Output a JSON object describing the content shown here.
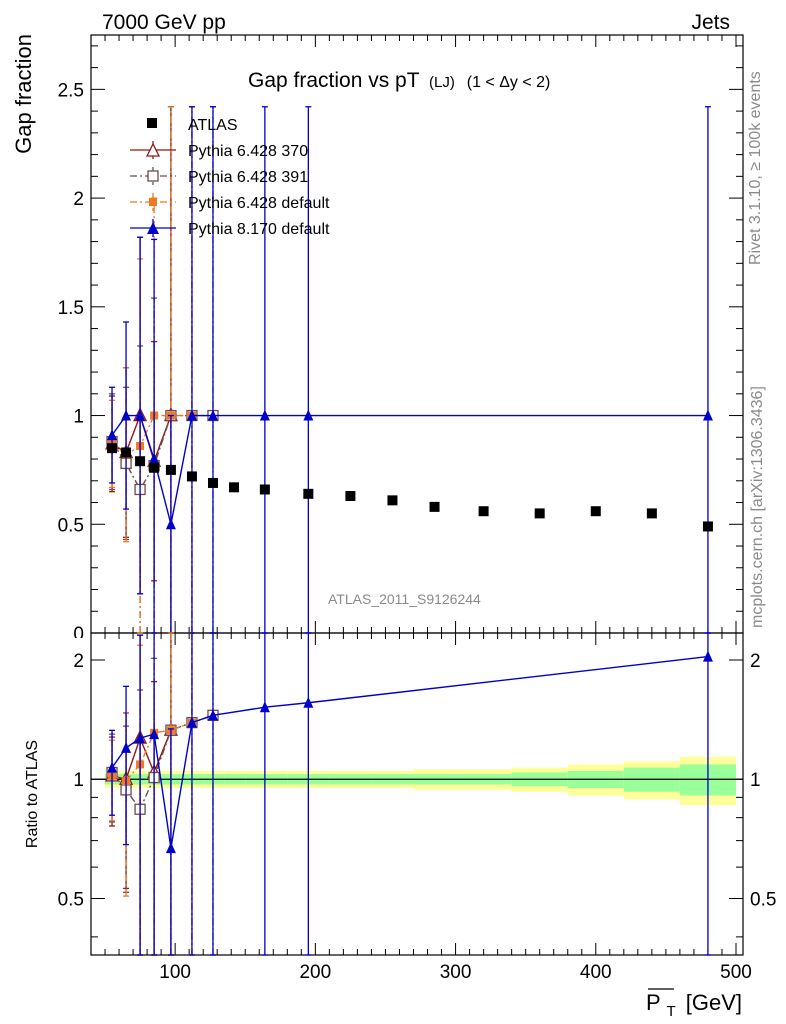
{
  "header": {
    "left": "7000 GeV pp",
    "right": "Jets"
  },
  "side_text": {
    "rivet": "Rivet 3.1.10, ≥ 100k events",
    "mcplots": "mcplots.cern.ch [arXiv:1306.3436]"
  },
  "watermark": "ATLAS_2011_S9126244",
  "chart_data": [
    {
      "type": "scatter",
      "panel": "main",
      "title": "Gap fraction vs pT (LJ) (1 < Δy < 2)",
      "title_parts": {
        "main": "Gap fraction vs pT",
        "sub": "(LJ)",
        "range": "(1 < Δy < 2)"
      },
      "ylabel": "Gap fraction",
      "xlim": [
        40,
        505
      ],
      "ylim": [
        0,
        2.75
      ],
      "yticks": [
        0.5,
        1,
        1.5,
        2,
        2.5
      ],
      "ytick_labels": [
        "0.5",
        "1",
        "1.5",
        "2",
        "2.5"
      ],
      "grid": false,
      "legend_position": "top-left",
      "series": [
        {
          "name": "ATLAS",
          "color": "#000000",
          "marker": "square-filled",
          "line": "none",
          "x": [
            55,
            65,
            75,
            85,
            97,
            112,
            127,
            142,
            164,
            195,
            225,
            255,
            285,
            320,
            360,
            400,
            440,
            480
          ],
          "y": [
            0.85,
            0.83,
            0.79,
            0.76,
            0.75,
            0.72,
            0.69,
            0.67,
            0.66,
            0.64,
            0.63,
            0.61,
            0.58,
            0.56,
            0.55,
            0.56,
            0.55,
            0.49
          ]
        },
        {
          "name": "Pythia 6.428 370",
          "color": "#8b1a1a",
          "marker": "triangle-open",
          "line": "solid",
          "x": [
            55,
            65,
            75,
            85,
            97
          ],
          "y": [
            0.87,
            0.83,
            1.0,
            0.79,
            1.0
          ],
          "yerr": [
            0.22,
            0.39,
            0.82,
            0.55,
            1.42
          ]
        },
        {
          "name": "Pythia 6.428 391",
          "color": "#6e4a4a",
          "marker": "square-open",
          "line": "dash-dot",
          "x": [
            55,
            65,
            75,
            85,
            97,
            112,
            127
          ],
          "y": [
            0.88,
            0.78,
            0.66,
            0.77,
            1.0,
            1.0,
            1.0
          ],
          "yerr": [
            0.22,
            0.35,
            0.66,
            0.77,
            1.42,
            1.42,
            1.42
          ]
        },
        {
          "name": "Pythia 6.428 default",
          "color": "#f07820",
          "marker": "square-filled",
          "line": "dash-dot",
          "x": [
            55,
            65,
            75,
            85,
            97,
            112
          ],
          "y": [
            0.87,
            0.82,
            0.86,
            1.0,
            1.0,
            1.0
          ],
          "yerr": [
            0.2,
            0.4,
            0.86,
            1.0,
            1.42,
            1.42
          ]
        },
        {
          "name": "Pythia 8.170 default",
          "color": "#0000cc",
          "marker": "triangle-filled",
          "line": "solid",
          "x": [
            55,
            65,
            75,
            85,
            97,
            112,
            127,
            164,
            195,
            480
          ],
          "y": [
            0.91,
            1.0,
            1.0,
            0.8,
            0.5,
            1.0,
            1.0,
            1.0,
            1.0,
            1.0
          ],
          "yerr": [
            0.22,
            0.43,
            0.82,
            1.01,
            0.5,
            1.42,
            1.42,
            1.42,
            1.42,
            1.42
          ]
        }
      ]
    },
    {
      "type": "scatter",
      "panel": "ratio",
      "ylabel": "Ratio to ATLAS",
      "xlabel": "P_T [GeV]",
      "xlabel_parts": {
        "symbol": "P",
        "subscript": "T",
        "unit": "[GeV]"
      },
      "xlim": [
        40,
        505
      ],
      "ylim": [
        0.36,
        2.34
      ],
      "yscale": "log",
      "xticks": [
        100,
        200,
        300,
        400,
        500
      ],
      "xtick_labels": [
        "100",
        "200",
        "300",
        "400",
        "500"
      ],
      "yticks": [
        0.5,
        1,
        2
      ],
      "ytick_labels": [
        "0.5",
        "1",
        "2"
      ],
      "bands": {
        "x_edges": [
          50,
          60,
          70,
          80,
          90,
          104,
          120,
          135,
          150,
          180,
          210,
          240,
          270,
          300,
          340,
          380,
          420,
          460,
          500
        ],
        "inner_halfwidth": [
          0.03,
          0.03,
          0.03,
          0.03,
          0.03,
          0.03,
          0.03,
          0.03,
          0.03,
          0.03,
          0.03,
          0.03,
          0.03,
          0.03,
          0.04,
          0.05,
          0.07,
          0.09
        ],
        "outer_halfwidth": [
          0.05,
          0.05,
          0.05,
          0.05,
          0.05,
          0.05,
          0.05,
          0.05,
          0.05,
          0.05,
          0.05,
          0.05,
          0.06,
          0.06,
          0.07,
          0.09,
          0.11,
          0.14
        ],
        "inner_color": "#99ff99",
        "outer_color": "#ffff99"
      },
      "series": [
        {
          "name": "Pythia 6.428 370",
          "color": "#8b1a1a",
          "marker": "triangle-open",
          "line": "solid",
          "x": [
            55,
            65,
            75,
            85,
            97
          ],
          "y": [
            1.02,
            1.0,
            1.27,
            1.04,
            1.33
          ]
        },
        {
          "name": "Pythia 6.428 391",
          "color": "#6e4a4a",
          "marker": "square-open",
          "line": "dash-dot",
          "x": [
            55,
            65,
            75,
            85,
            97,
            112,
            127
          ],
          "y": [
            1.04,
            0.94,
            0.84,
            1.01,
            1.33,
            1.39,
            1.45
          ]
        },
        {
          "name": "Pythia 6.428 default",
          "color": "#f07820",
          "marker": "square-filled",
          "line": "dash-dot",
          "x": [
            55,
            65,
            75,
            85,
            97,
            112
          ],
          "y": [
            1.02,
            0.99,
            1.09,
            1.31,
            1.33,
            1.39
          ]
        },
        {
          "name": "Pythia 8.170 default",
          "color": "#0000cc",
          "marker": "triangle-filled",
          "line": "solid",
          "x": [
            55,
            65,
            75,
            85,
            97,
            112,
            127,
            164,
            195,
            480
          ],
          "y": [
            1.07,
            1.2,
            1.27,
            1.3,
            0.67,
            1.39,
            1.45,
            1.52,
            1.56,
            2.04
          ]
        }
      ]
    }
  ]
}
